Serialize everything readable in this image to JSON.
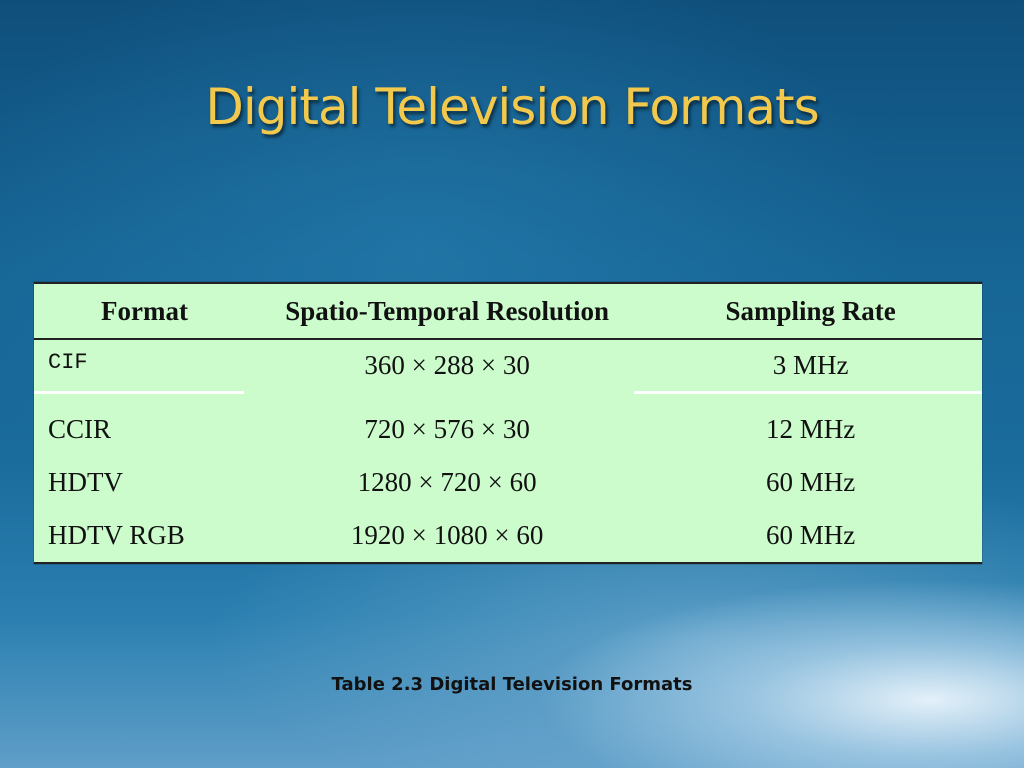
{
  "slide": {
    "title": "Digital Television Formats",
    "caption": "Table 2.3  Digital Television Formats"
  },
  "table": {
    "headers": [
      "Format",
      "Spatio-Temporal Resolution",
      "Sampling Rate"
    ],
    "rows": [
      [
        "CIF",
        "360 × 288 × 30",
        "3 MHz"
      ],
      [
        "CCIR",
        "720 × 576 × 30",
        "12 MHz"
      ],
      [
        "HDTV",
        "1280 × 720 × 60",
        "60 MHz"
      ],
      [
        "HDTV RGB",
        "1920 × 1080 × 60",
        "60 MHz"
      ]
    ]
  },
  "colors": {
    "title": "#f2c94c",
    "table_background": "#ccfccc",
    "background": "#166595"
  }
}
